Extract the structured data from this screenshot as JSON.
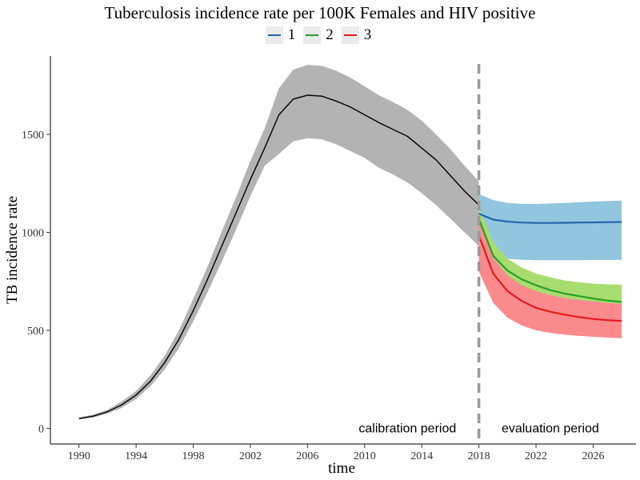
{
  "chart_data": {
    "type": "line",
    "title": "Tuberculosis incidence rate per 100K Females and HIV positive",
    "xlabel": "time",
    "ylabel": "TB incidence rate",
    "xlim": [
      1988,
      2029
    ],
    "ylim": [
      -80,
      1900
    ],
    "x_ticks": [
      1990,
      1994,
      1998,
      2002,
      2006,
      2010,
      2014,
      2018,
      2022,
      2026
    ],
    "y_ticks": [
      0,
      500,
      1000,
      1500
    ],
    "grid": false,
    "legend_position": "top",
    "vline": {
      "x": 2018,
      "color": "#999999"
    },
    "annotations": [
      {
        "text": "calibration period",
        "x": 2013,
        "y": 0
      },
      {
        "text": "evaluation period",
        "x": 2023,
        "y": 0
      }
    ],
    "series": [
      {
        "name": "",
        "color": "#000000",
        "band_color": "#b3b3b3",
        "x": [
          1990,
          1991,
          1992,
          1993,
          1994,
          1995,
          1996,
          1997,
          1998,
          1999,
          2000,
          2001,
          2002,
          2003,
          2004,
          2005,
          2006,
          2007,
          2008,
          2009,
          2010,
          2011,
          2012,
          2013,
          2014,
          2015,
          2016,
          2017,
          2018
        ],
        "y": [
          50,
          62,
          85,
          120,
          170,
          240,
          335,
          455,
          600,
          760,
          930,
          1100,
          1270,
          1430,
          1600,
          1680,
          1700,
          1695,
          1670,
          1640,
          1600,
          1560,
          1525,
          1490,
          1430,
          1370,
          1290,
          1210,
          1140
        ],
        "lower": [
          45,
          55,
          75,
          105,
          150,
          215,
          300,
          410,
          545,
          695,
          850,
          1015,
          1185,
          1340,
          1400,
          1465,
          1480,
          1475,
          1450,
          1415,
          1380,
          1330,
          1295,
          1255,
          1200,
          1140,
          1070,
          1000,
          930
        ],
        "upper": [
          55,
          70,
          95,
          138,
          190,
          270,
          370,
          500,
          660,
          825,
          1005,
          1180,
          1365,
          1530,
          1735,
          1830,
          1855,
          1850,
          1825,
          1790,
          1745,
          1700,
          1665,
          1625,
          1570,
          1500,
          1425,
          1340,
          1260
        ]
      },
      {
        "name": "1",
        "color": "#2166ac",
        "band_color": "#92c5de",
        "x": [
          2018,
          2019,
          2020,
          2021,
          2022,
          2023,
          2024,
          2025,
          2026,
          2027,
          2028
        ],
        "y": [
          1095,
          1065,
          1055,
          1050,
          1048,
          1048,
          1049,
          1050,
          1051,
          1052,
          1053
        ],
        "lower": [
          920,
          880,
          865,
          860,
          858,
          858,
          858,
          858,
          859,
          859,
          860
        ],
        "upper": [
          1195,
          1165,
          1150,
          1145,
          1145,
          1147,
          1150,
          1154,
          1157,
          1160,
          1162
        ]
      },
      {
        "name": "2",
        "color": "#2a9d2a",
        "band_color": "#a6dd6e",
        "x": [
          2018,
          2019,
          2020,
          2021,
          2022,
          2023,
          2024,
          2025,
          2026,
          2027,
          2028
        ],
        "y": [
          1070,
          880,
          805,
          760,
          730,
          705,
          688,
          675,
          662,
          652,
          645
        ],
        "lower": [
          1010,
          825,
          745,
          700,
          670,
          650,
          635,
          625,
          615,
          608,
          600
        ],
        "upper": [
          1130,
          950,
          865,
          820,
          790,
          770,
          755,
          745,
          738,
          735,
          733
        ]
      },
      {
        "name": "3",
        "color": "#e41a1c",
        "band_color": "#fb8a8c",
        "x": [
          2018,
          2019,
          2020,
          2021,
          2022,
          2023,
          2024,
          2025,
          2026,
          2027,
          2028
        ],
        "y": [
          985,
          790,
          700,
          650,
          615,
          595,
          580,
          568,
          558,
          552,
          548
        ],
        "lower": [
          800,
          640,
          565,
          525,
          500,
          487,
          478,
          472,
          467,
          463,
          460
        ],
        "upper": [
          1070,
          870,
          780,
          730,
          700,
          680,
          665,
          655,
          648,
          640,
          635
        ]
      }
    ]
  }
}
